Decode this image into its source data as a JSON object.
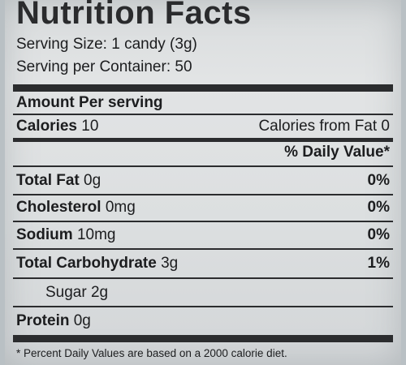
{
  "title": "Nutrition Facts",
  "serving_size": "Serving Size: 1 candy (3g)",
  "servings_per_container": "Serving per Container: 50",
  "amount_per_serving": "Amount Per serving",
  "calories": {
    "label": "Calories",
    "value": "10",
    "from_fat": "Calories from Fat 0"
  },
  "daily_value_header": "% Daily Value*",
  "nutrients": [
    {
      "label": "Total Fat",
      "amount": "0g",
      "dv": "0%"
    },
    {
      "label": "Cholesterol",
      "amount": "0mg",
      "dv": "0%"
    },
    {
      "label": "Sodium",
      "amount": "10mg",
      "dv": "0%"
    },
    {
      "label": "Total Carbohydrate",
      "amount": "3g",
      "dv": "1%"
    },
    {
      "label": "Sugar",
      "amount": "2g",
      "dv": ""
    },
    {
      "label": "Protein",
      "amount": "0g",
      "dv": ""
    }
  ],
  "footnote": "* Percent Daily Values are based on a 2000 calorie diet."
}
